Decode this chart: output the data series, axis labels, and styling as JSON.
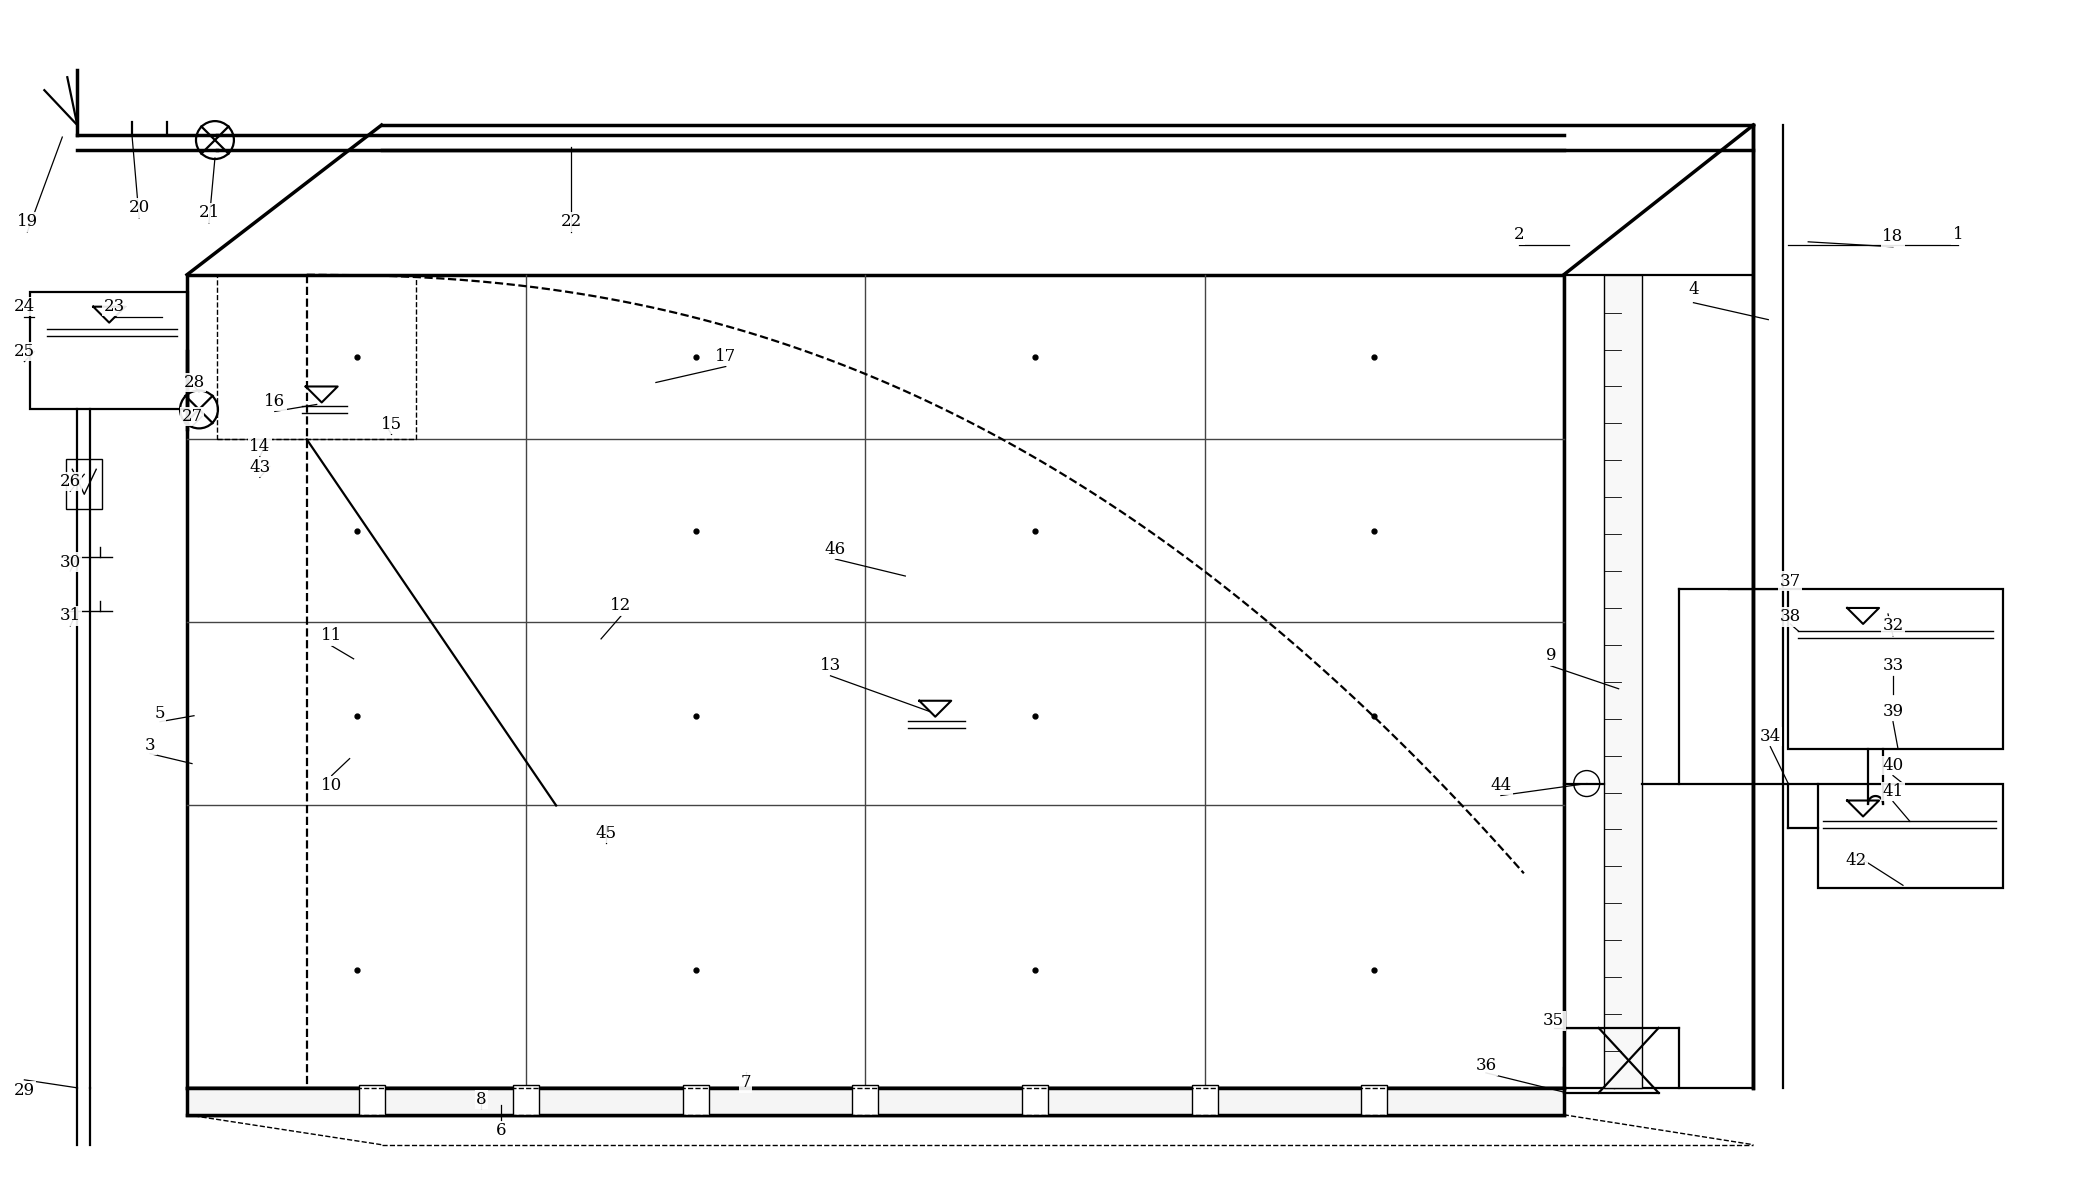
{
  "bg_color": "#ffffff",
  "line_color": "#000000",
  "fig_width": 20.88,
  "fig_height": 11.84
}
